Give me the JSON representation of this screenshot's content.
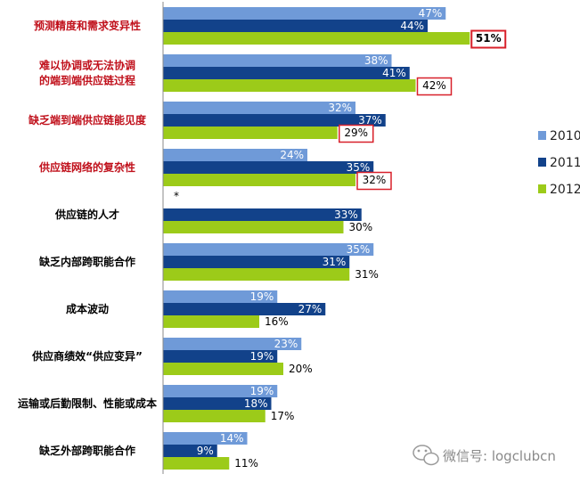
{
  "chart_data": {
    "type": "bar",
    "orientation": "horizontal",
    "categories": [
      "预测精度和需求变异性",
      "难以协调或无法协调的端到端供应链过程",
      "缺乏端到端供应链能见度",
      "供应链网络的复杂性",
      "供应链的人才",
      "缺乏内部跨职能合作",
      "成本波动",
      "供应商绩效“供应变异”",
      "运输或后勤限制、性能或成本",
      "缺乏外部跨职能合作"
    ],
    "category_lines": [
      [
        "预测精度和需求变异性"
      ],
      [
        "难以协调或无法协调",
        "的端到端供应链过程"
      ],
      [
        "缺乏端到端供应链能见度"
      ],
      [
        "供应链网络的复杂性"
      ],
      [
        "供应链的人才"
      ],
      [
        "缺乏内部跨职能合作"
      ],
      [
        "成本波动"
      ],
      [
        "供应商绩效“供应变异”"
      ],
      [
        "运输或后勤限制、性能或成本"
      ],
      [
        "缺乏外部跨职能合作"
      ]
    ],
    "highlighted_categories": [
      0,
      1,
      2,
      3
    ],
    "series": [
      {
        "name": "2010",
        "color": "#6f9ad8",
        "values": [
          47,
          38,
          32,
          24,
          null,
          35,
          19,
          23,
          19,
          14
        ]
      },
      {
        "name": "2011",
        "color": "#12428a",
        "values": [
          44,
          41,
          37,
          35,
          33,
          31,
          27,
          19,
          18,
          9
        ]
      },
      {
        "name": "2012",
        "color": "#9ccb19",
        "values": [
          51,
          42,
          29,
          32,
          30,
          31,
          16,
          20,
          17,
          11
        ]
      }
    ],
    "unit": "%",
    "boxed_values": [
      {
        "category": 0,
        "series": "2012"
      },
      {
        "category": 1,
        "series": "2012"
      },
      {
        "category": 2,
        "series": "2012"
      },
      {
        "category": 3,
        "series": "2012"
      }
    ],
    "missing_marker": "*",
    "legend": "right"
  },
  "colors": {
    "highlight_label": "#c0101b",
    "normal_label": "#000000",
    "box": "#d8202a",
    "axis": "#8a8a8a",
    "inside_label": "#ffffff",
    "outside_label": "#000000"
  },
  "watermark": {
    "text": "微信号: logclubcn",
    "icon": "wechat-icon"
  }
}
